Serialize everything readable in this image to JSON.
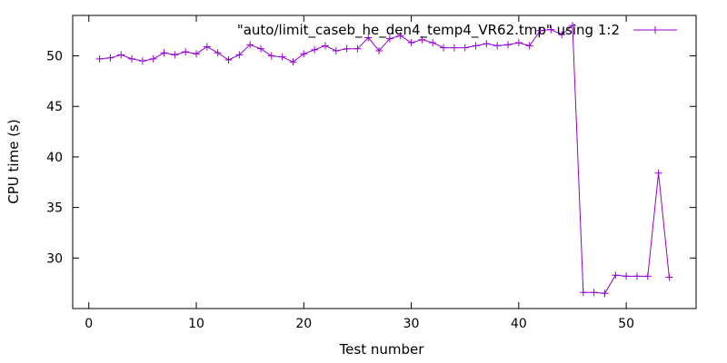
{
  "chart_data": {
    "type": "line",
    "title": "",
    "xlabel": "Test number",
    "ylabel": "CPU time (s)",
    "xlim": [
      -1.5,
      56.5
    ],
    "ylim": [
      25,
      54
    ],
    "xticks": [
      0,
      10,
      20,
      30,
      40,
      50
    ],
    "yticks": [
      30,
      35,
      40,
      45,
      50
    ],
    "grid": false,
    "legend": "top-right",
    "series": [
      {
        "name": "\"auto/limit_caseb_he_den4_temp4_VR62.tmp\" using 1:2",
        "color": "#9400d3",
        "marker": "plus",
        "x": [
          1,
          2,
          3,
          4,
          5,
          6,
          7,
          8,
          9,
          10,
          11,
          12,
          13,
          14,
          15,
          16,
          17,
          18,
          19,
          20,
          21,
          22,
          23,
          24,
          25,
          26,
          27,
          28,
          29,
          30,
          31,
          32,
          33,
          34,
          35,
          36,
          37,
          38,
          39,
          40,
          41,
          42,
          43,
          44,
          45,
          46,
          47,
          48,
          49,
          50,
          51,
          52,
          53,
          54
        ],
        "y": [
          49.7,
          49.8,
          50.1,
          49.7,
          49.5,
          49.7,
          50.3,
          50.1,
          50.4,
          50.2,
          50.9,
          50.3,
          49.6,
          50.1,
          51.1,
          50.7,
          50.0,
          49.9,
          49.4,
          50.2,
          50.6,
          51.0,
          50.5,
          50.7,
          50.7,
          51.8,
          50.5,
          51.7,
          52.0,
          51.3,
          51.6,
          51.3,
          50.8,
          50.8,
          50.8,
          51.0,
          51.2,
          51.0,
          51.1,
          51.3,
          51.0,
          52.5,
          52.6,
          52.1,
          53.0,
          26.6,
          26.6,
          26.5,
          28.3,
          28.2,
          28.2,
          28.2,
          38.4,
          28.1
        ]
      }
    ]
  }
}
